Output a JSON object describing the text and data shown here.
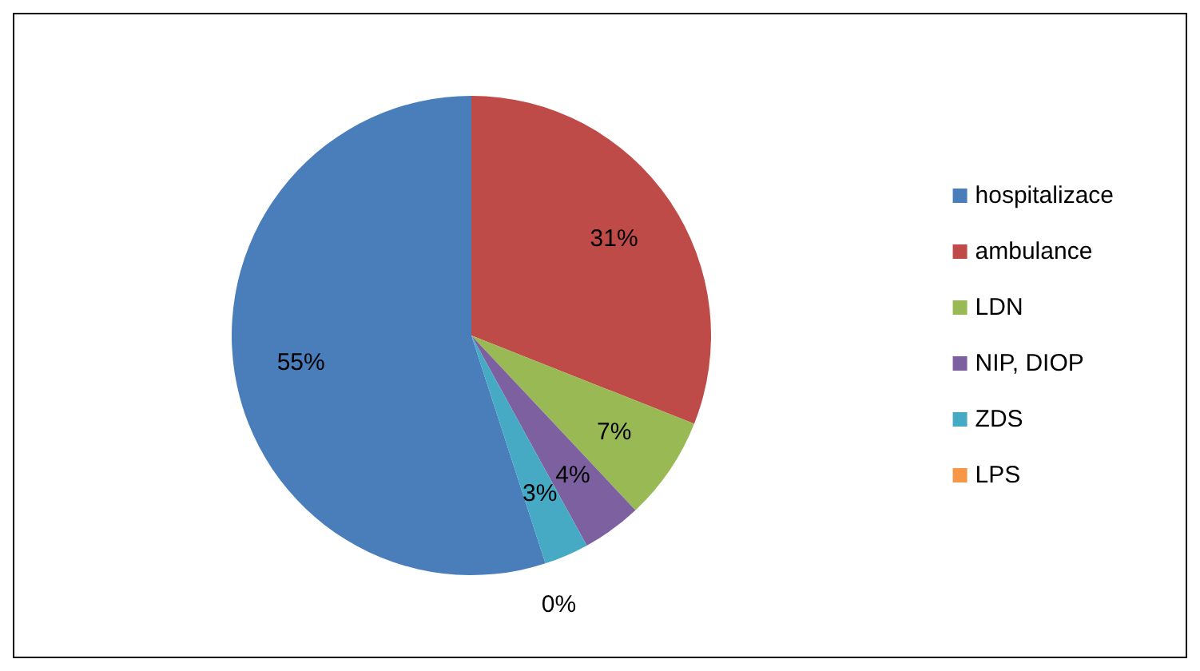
{
  "chart_data": {
    "type": "pie",
    "categories": [
      "hospitalizace",
      "ambulance",
      "LDN",
      "NIP, DIOP",
      "ZDS",
      "LPS"
    ],
    "values": [
      55,
      31,
      7,
      4,
      3,
      0
    ],
    "colors": [
      "#4a7ebb",
      "#be4b48",
      "#98b954",
      "#7d60a0",
      "#46aac5",
      "#f79646"
    ],
    "value_labels": [
      "55%",
      "31%",
      "7%",
      "4%",
      "3%",
      "0%"
    ],
    "legend": "right"
  }
}
